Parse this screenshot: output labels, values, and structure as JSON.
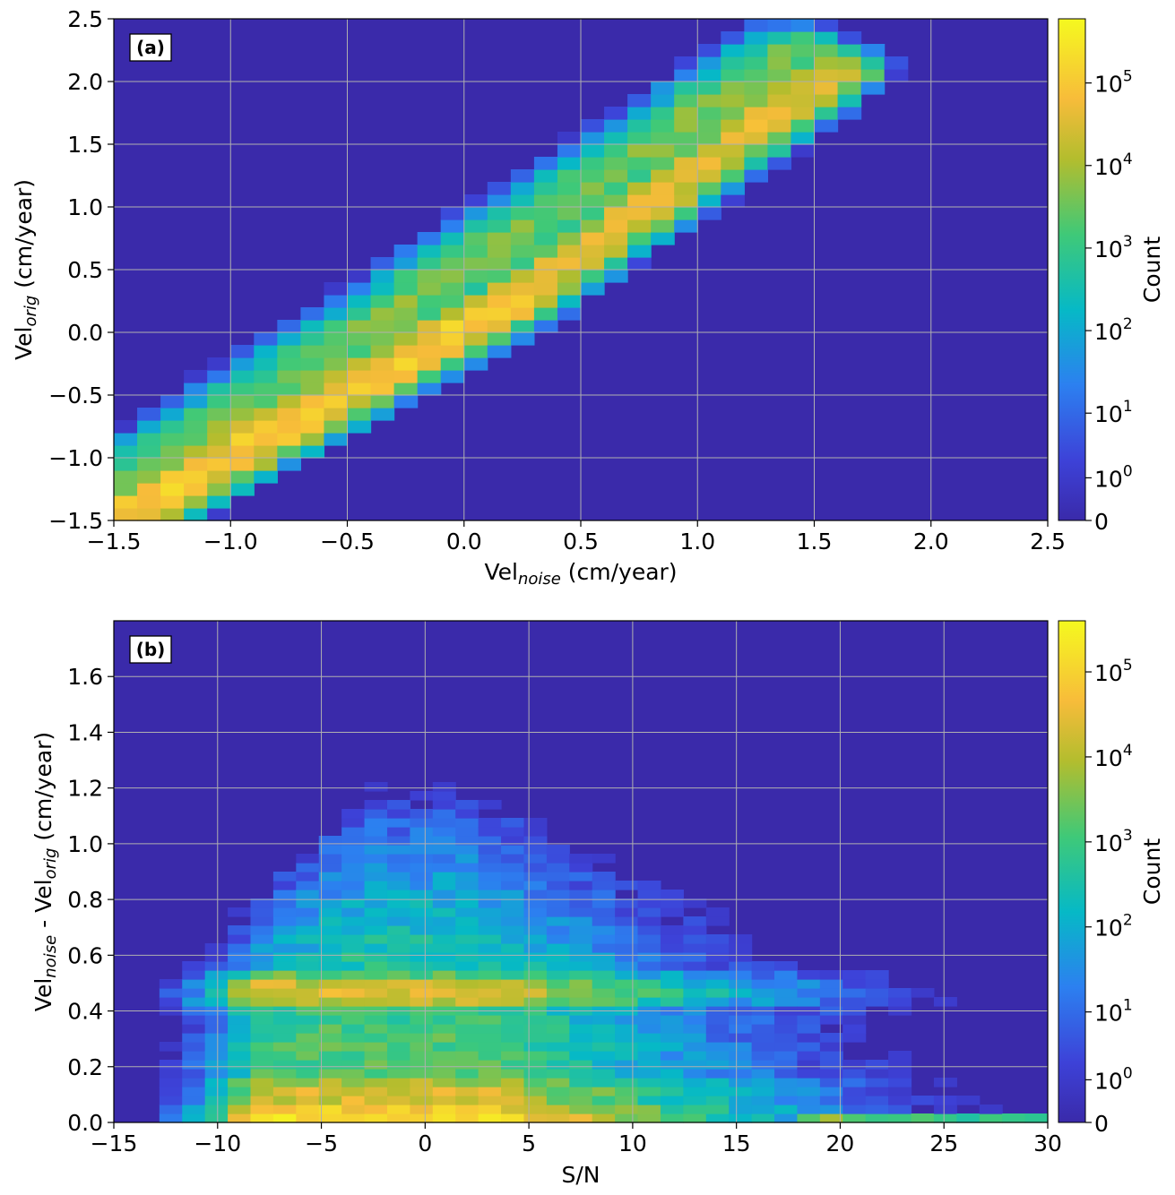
{
  "chart_data": [
    {
      "type": "heatmap",
      "panel_label": "(a)",
      "xlabel": {
        "base": "Vel",
        "sub": "noise",
        "rest": " (cm/year)"
      },
      "ylabel": {
        "base": "Vel",
        "sub": "orig",
        "rest": " (cm/year)"
      },
      "xlim": [
        -1.5,
        2.5
      ],
      "ylim": [
        -1.5,
        2.5
      ],
      "xticks": [
        -1.5,
        -1.0,
        -0.5,
        0.0,
        0.5,
        1.0,
        1.5,
        2.0,
        2.5
      ],
      "xtick_labels": [
        "−1.5",
        "−1.0",
        "−0.5",
        "0.0",
        "0.5",
        "1.0",
        "1.5",
        "2.0",
        "2.5"
      ],
      "yticks": [
        -1.5,
        -1.0,
        -0.5,
        0.0,
        0.5,
        1.0,
        1.5,
        2.0,
        2.5
      ],
      "ytick_labels": [
        "−1.5",
        "−1.0",
        "−0.5",
        "0.0",
        "0.5",
        "1.0",
        "1.5",
        "2.0",
        "2.5"
      ],
      "grid": true,
      "nx": 40,
      "ny": 40,
      "background_color": "#3a2aaa",
      "colorbar": {
        "label": "Count",
        "scale": "log",
        "tick_labels": [
          "0",
          "10",
          "10",
          "10",
          "10",
          "10",
          "10"
        ],
        "tick_exponents": [
          "",
          "0",
          "1",
          "2",
          "3",
          "4",
          "5"
        ],
        "max": 300000
      },
      "structure": {
        "ridges": [
          {
            "from": [
              -1.5,
              -1.5
            ],
            "to": [
              0.25,
              0.3
            ],
            "peak_log10": 5.1
          },
          {
            "from": [
              0.25,
              0.3
            ],
            "to": [
              1.6,
              2.1
            ],
            "peak_log10": 4.6
          },
          {
            "from": [
              -1.5,
              -1.3
            ],
            "to": [
              1.4,
              2.2
            ],
            "peak_log10": 3.6
          }
        ]
      }
    },
    {
      "type": "heatmap",
      "panel_label": "(b)",
      "xlabel": {
        "base": "S/N",
        "sub": "",
        "rest": ""
      },
      "ylabel": {
        "base": "Vel",
        "sub": "noise",
        "rest": " - Vel",
        "sub2": "orig",
        "rest2": " (cm/year)"
      },
      "xlim": [
        -15,
        30
      ],
      "ylim": [
        0.0,
        1.8
      ],
      "xticks": [
        -15,
        -10,
        -5,
        0,
        5,
        10,
        15,
        20,
        25,
        30
      ],
      "xtick_labels": [
        "−15",
        "−10",
        "−5",
        "0",
        "5",
        "10",
        "15",
        "20",
        "25",
        "30"
      ],
      "yticks": [
        0.0,
        0.2,
        0.4,
        0.6,
        0.8,
        1.0,
        1.2,
        1.4,
        1.6
      ],
      "ytick_labels": [
        "0.0",
        "0.2",
        "0.4",
        "0.6",
        "0.8",
        "1.0",
        "1.2",
        "1.4",
        "1.6"
      ],
      "grid": true,
      "nx": 41,
      "ny": 56,
      "background_color": "#3a2aaa",
      "colorbar": {
        "label": "Count",
        "scale": "log",
        "tick_labels": [
          "0",
          "10",
          "10",
          "10",
          "10",
          "10",
          "10"
        ],
        "tick_exponents": [
          "",
          "0",
          "1",
          "2",
          "3",
          "4",
          "5"
        ],
        "max": 200000
      },
      "structure": {
        "bands": [
          {
            "y": 0.0,
            "peak_log10": 5.2
          },
          {
            "y": 0.1,
            "peak_log10": 4.3
          },
          {
            "y": 0.47,
            "peak_log10": 4.4
          }
        ],
        "peak_x": [
          -7,
          3
        ]
      }
    }
  ]
}
